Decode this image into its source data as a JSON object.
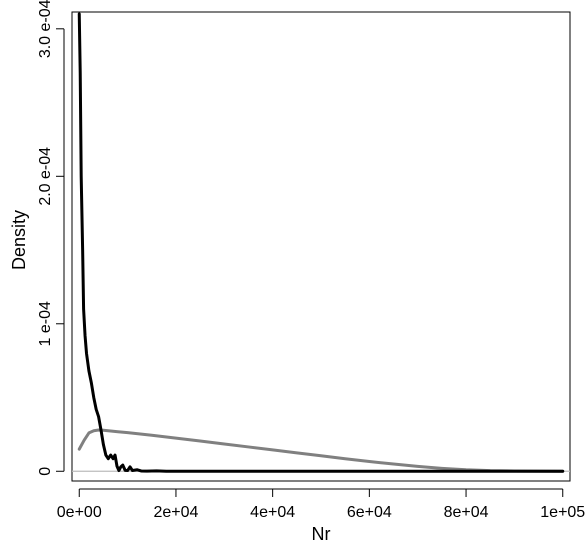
{
  "chart_data": {
    "type": "line",
    "title": "",
    "xlabel": "Nr",
    "ylabel": "Density",
    "xlim": [
      -1500,
      101500
    ],
    "ylim": [
      -6.6e-06,
      0.0003114
    ],
    "x_ticks": [
      {
        "value": 0,
        "label": "0e+00"
      },
      {
        "value": 20000,
        "label": "2e+04"
      },
      {
        "value": 40000,
        "label": "4e+04"
      },
      {
        "value": 60000,
        "label": "6e+04"
      },
      {
        "value": 80000,
        "label": "8e+04"
      },
      {
        "value": 100000,
        "label": "1e+05"
      }
    ],
    "y_ticks": [
      {
        "value": 0,
        "label": "0"
      },
      {
        "value": 0.0001,
        "label": "1 e-04"
      },
      {
        "value": 0.0002,
        "label": "2.0 e-04"
      },
      {
        "value": 0.0003,
        "label": "3.0 e-04"
      }
    ],
    "reference_line": {
      "y": 0,
      "color": "#bbbbbb"
    },
    "legend": "none",
    "grid": false,
    "series": [
      {
        "color": "#000000",
        "points": [
          [
            0,
            0.00031
          ],
          [
            200,
            0.00027
          ],
          [
            400,
            0.0002
          ],
          [
            700,
            0.00015
          ],
          [
            900,
            0.00011
          ],
          [
            1200,
            9.2e-05
          ],
          [
            1500,
            8e-05
          ],
          [
            2000,
            6.8e-05
          ],
          [
            2500,
            6e-05
          ],
          [
            3000,
            5e-05
          ],
          [
            3500,
            4.2e-05
          ],
          [
            4000,
            3.7e-05
          ],
          [
            4500,
            2.8e-05
          ],
          [
            5000,
            1.8e-05
          ],
          [
            5500,
            1.1e-05
          ],
          [
            6000,
            8.5e-06
          ],
          [
            6500,
            1.1e-05
          ],
          [
            7000,
            8.5e-06
          ],
          [
            7400,
            1.1e-05
          ],
          [
            7800,
            3.5e-06
          ],
          [
            8200,
            5e-07
          ],
          [
            8600,
            3e-06
          ],
          [
            9000,
            4.2e-06
          ],
          [
            9500,
            6e-07
          ],
          [
            10000,
            5e-07
          ],
          [
            10500,
            3e-06
          ],
          [
            11000,
            5e-07
          ],
          [
            12000,
            1e-06
          ],
          [
            12800,
            2e-07
          ],
          [
            14000,
            1e-07
          ],
          [
            16000,
            3e-07
          ],
          [
            18000,
            0
          ],
          [
            20000,
            0
          ],
          [
            40000,
            0
          ],
          [
            60000,
            0
          ],
          [
            80000,
            0
          ],
          [
            100000,
            0
          ]
        ]
      },
      {
        "color": "#808080",
        "points": [
          [
            0,
            1.5e-05
          ],
          [
            1000,
            2.1e-05
          ],
          [
            2000,
            2.6e-05
          ],
          [
            3000,
            2.75e-05
          ],
          [
            4000,
            2.8e-05
          ],
          [
            5000,
            2.78e-05
          ],
          [
            8000,
            2.68e-05
          ],
          [
            10000,
            2.62e-05
          ],
          [
            15000,
            2.44e-05
          ],
          [
            20000,
            2.25e-05
          ],
          [
            25000,
            2.05e-05
          ],
          [
            30000,
            1.85e-05
          ],
          [
            35000,
            1.65e-05
          ],
          [
            40000,
            1.45e-05
          ],
          [
            45000,
            1.25e-05
          ],
          [
            50000,
            1.05e-05
          ],
          [
            55000,
            8.5e-06
          ],
          [
            60000,
            6.6e-06
          ],
          [
            65000,
            4.9e-06
          ],
          [
            70000,
            3.3e-06
          ],
          [
            75000,
            2e-06
          ],
          [
            80000,
            1e-06
          ],
          [
            85000,
            4e-07
          ],
          [
            90000,
            2e-07
          ],
          [
            95000,
            1e-07
          ],
          [
            100000,
            0
          ]
        ]
      }
    ]
  }
}
